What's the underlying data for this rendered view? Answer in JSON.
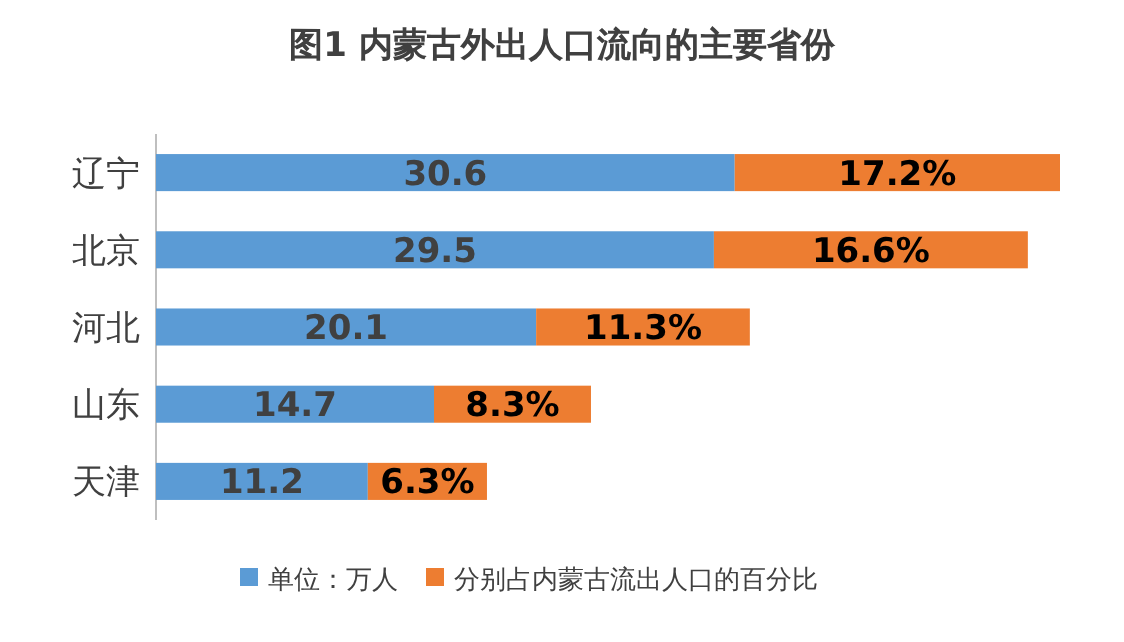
{
  "chart_data": {
    "type": "bar",
    "orientation": "horizontal",
    "stacked": true,
    "title": "图1  内蒙古外出人口流向的主要省份",
    "categories": [
      "辽宁",
      "北京",
      "河北",
      "山东",
      "天津"
    ],
    "series": [
      {
        "name": "单位：万人",
        "color": "#5b9bd5",
        "values": [
          30.6,
          29.5,
          20.1,
          14.7,
          11.2
        ],
        "value_labels": [
          "30.6",
          "29.5",
          "20.1",
          "14.7",
          "11.2"
        ]
      },
      {
        "name": "分别占内蒙古流出人口的百分比",
        "color": "#ed7d31",
        "values": [
          17.2,
          16.6,
          11.3,
          8.3,
          6.3
        ],
        "value_labels": [
          "17.2%",
          "16.6%",
          "11.3%",
          "8.3%",
          "6.3%"
        ]
      }
    ],
    "legend": "bottom"
  }
}
